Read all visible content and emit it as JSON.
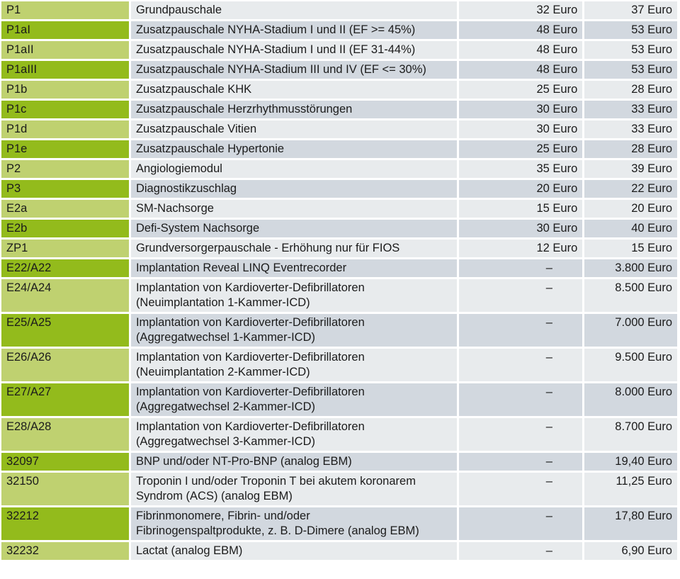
{
  "rows": [
    {
      "code": "P1",
      "desc": [
        "Grundpauschale"
      ],
      "v1": "32 Euro",
      "v2": "37 Euro"
    },
    {
      "code": "P1aI",
      "desc": [
        "Zusatzpauschale NYHA-Stadium I und II (EF >= 45%)"
      ],
      "v1": "48 Euro",
      "v2": "53 Euro"
    },
    {
      "code": "P1aII",
      "desc": [
        "Zusatzpauschale NYHA-Stadium I und II (EF 31-44%)"
      ],
      "v1": "48 Euro",
      "v2": "53 Euro"
    },
    {
      "code": "P1aIII",
      "desc": [
        "Zusatzpauschale NYHA-Stadium III und IV (EF <= 30%)"
      ],
      "v1": "48 Euro",
      "v2": "53 Euro"
    },
    {
      "code": "P1b",
      "desc": [
        "Zusatzpauschale KHK"
      ],
      "v1": "25 Euro",
      "v2": "28 Euro"
    },
    {
      "code": "P1c",
      "desc": [
        "Zusatzpauschale Herzrhythmusstörungen"
      ],
      "v1": "30 Euro",
      "v2": "33 Euro"
    },
    {
      "code": "P1d",
      "desc": [
        "Zusatzpauschale Vitien"
      ],
      "v1": "30 Euro",
      "v2": "33 Euro"
    },
    {
      "code": "P1e",
      "desc": [
        "Zusatzpauschale Hypertonie"
      ],
      "v1": "25 Euro",
      "v2": "28 Euro"
    },
    {
      "code": "P2",
      "desc": [
        "Angiologiemodul"
      ],
      "v1": "35 Euro",
      "v2": "39 Euro"
    },
    {
      "code": "P3",
      "desc": [
        "Diagnostikzuschlag"
      ],
      "v1": "20 Euro",
      "v2": "22 Euro"
    },
    {
      "code": "E2a",
      "desc": [
        "SM-Nachsorge"
      ],
      "v1": "15 Euro",
      "v2": "20 Euro"
    },
    {
      "code": "E2b",
      "desc": [
        "Defi-System Nachsorge"
      ],
      "v1": "30 Euro",
      "v2": "40 Euro"
    },
    {
      "code": "ZP1",
      "desc": [
        "Grundversorgerpauschale - Erhöhung nur für FIOS"
      ],
      "v1": "12 Euro",
      "v2": "15 Euro"
    },
    {
      "code": "E22/A22",
      "desc": [
        "Implantation Reveal LINQ Eventrecorder"
      ],
      "v1": "–",
      "v2": "3.800 Euro"
    },
    {
      "code": "E24/A24",
      "desc": [
        "Implantation von Kardioverter-Defibrillatoren",
        "(Neuimplantation 1-Kammer-ICD)"
      ],
      "v1": "–",
      "v2": "8.500 Euro"
    },
    {
      "code": "E25/A25",
      "desc": [
        "Implantation von Kardioverter-Defibrillatoren",
        "(Aggregatwechsel 1-Kammer-ICD)"
      ],
      "v1": "–",
      "v2": "7.000 Euro"
    },
    {
      "code": "E26/A26",
      "desc": [
        "Implantation von Kardioverter-Defibrillatoren",
        "(Neuimplantation 2-Kammer-ICD)"
      ],
      "v1": "–",
      "v2": "9.500 Euro"
    },
    {
      "code": "E27/A27",
      "desc": [
        "Implantation von Kardioverter-Defibrillatoren",
        "(Aggregatwechsel 2-Kammer-ICD)"
      ],
      "v1": "–",
      "v2": "8.000 Euro"
    },
    {
      "code": "E28/A28",
      "desc": [
        "Implantation von Kardioverter-Defibrillatoren",
        "(Aggregatwechsel 3-Kammer-ICD)"
      ],
      "v1": "–",
      "v2": "8.700 Euro"
    },
    {
      "code": "32097",
      "desc": [
        "BNP und/oder NT-Pro-BNP (analog EBM)"
      ],
      "v1": "–",
      "v2": "19,40 Euro"
    },
    {
      "code": "32150",
      "desc": [
        "Troponin I und/oder Troponin T bei akutem koronarem",
        "Syndrom (ACS) (analog EBM)"
      ],
      "v1": "–",
      "v2": "11,25 Euro"
    },
    {
      "code": "32212",
      "desc": [
        "Fibrinmonomere, Fibrin- und/oder",
        "Fibrinogenspaltprodukte, z. B. D-Dimere (analog EBM)"
      ],
      "v1": "–",
      "v2": "17,80 Euro"
    },
    {
      "code": "32232",
      "desc": [
        "Lactat (analog EBM)"
      ],
      "v1": "–",
      "v2": "6,90 Euro"
    }
  ],
  "colors": {
    "code_light": "#bfd170",
    "code_dark": "#93bb1c",
    "body_light": "#e8ebed",
    "body_dark": "#d2d8df"
  }
}
